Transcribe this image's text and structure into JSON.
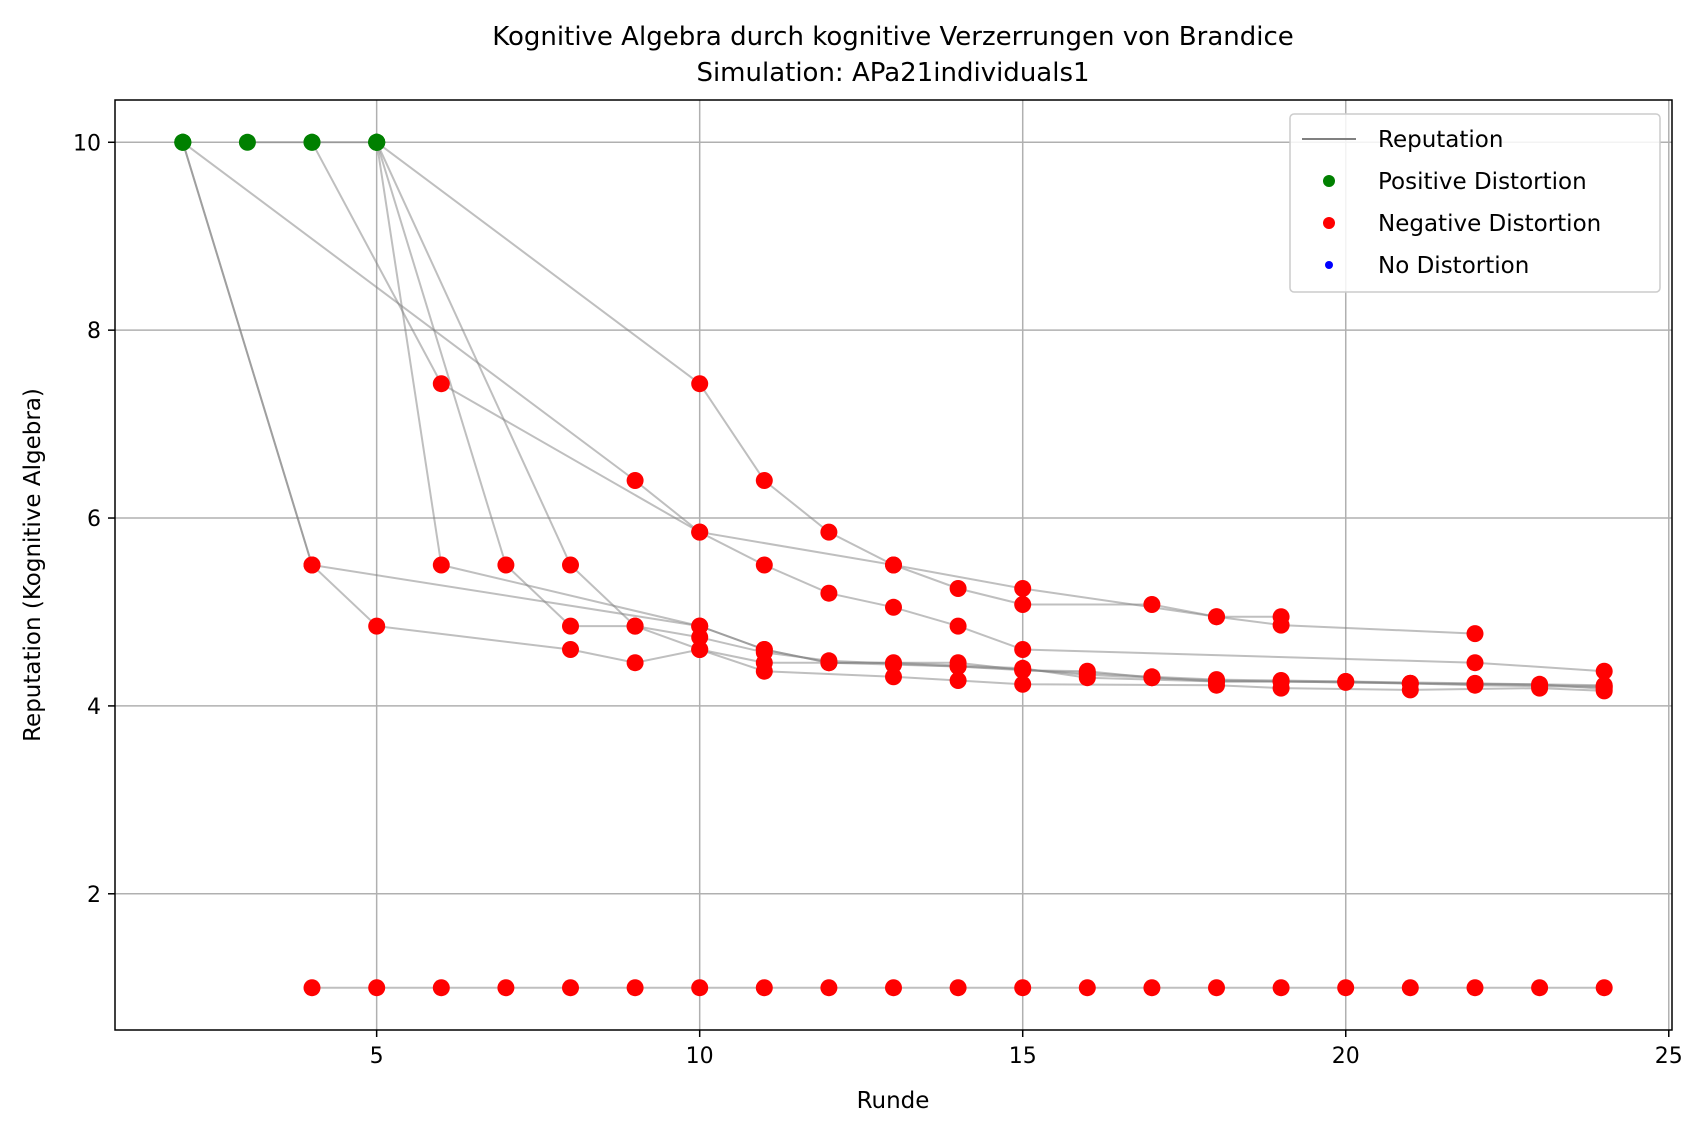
{
  "chart_data": {
    "type": "scatter",
    "title": "Kognitive Algebra durch kognitive Verzerrungen von Brandice",
    "subtitle": "Simulation: APa21individuals1",
    "xlabel": "Runde",
    "ylabel": "Reputation (Kognitive Algebra)",
    "xlim": [
      0.95,
      25.05
    ],
    "ylim": [
      0.55,
      10.45
    ],
    "xticks": [
      5,
      10,
      15,
      20,
      25
    ],
    "yticks": [
      2,
      4,
      6,
      8,
      10
    ],
    "xtick_labels": [
      "5",
      "10",
      "15",
      "20",
      "25"
    ],
    "ytick_labels": [
      "2",
      "4",
      "6",
      "8",
      "10"
    ],
    "grid": true,
    "legend_position": "top-right",
    "legend": [
      {
        "label": "Reputation",
        "kind": "line",
        "color": "#808080"
      },
      {
        "label": "Positive Distortion",
        "kind": "marker",
        "color": "#008000"
      },
      {
        "label": "Negative Distortion",
        "kind": "marker",
        "color": "#ff0000"
      },
      {
        "label": "No Distortion",
        "kind": "marker",
        "color": "#0000ff"
      }
    ],
    "colors": {
      "positive": "#008000",
      "negative": "#ff0000",
      "none": "#0000ff",
      "line": "#808080"
    },
    "series": [
      {
        "points": [
          [
            2,
            10
          ],
          [
            4,
            5.5
          ],
          [
            10,
            4.85
          ],
          [
            11,
            4.6
          ],
          [
            12,
            4.46
          ],
          [
            13,
            4.44
          ],
          [
            14,
            4.42
          ],
          [
            15,
            4.38
          ],
          [
            16,
            4.35
          ],
          [
            17,
            4.31
          ],
          [
            18,
            4.28
          ],
          [
            19,
            4.27
          ],
          [
            20,
            4.26
          ],
          [
            21,
            4.24
          ],
          [
            22,
            4.22
          ],
          [
            23,
            4.21
          ],
          [
            24,
            4.2
          ]
        ]
      },
      {
        "points": [
          [
            2,
            10
          ],
          [
            4,
            5.5
          ],
          [
            5,
            4.85
          ],
          [
            8,
            4.6
          ],
          [
            9,
            4.46
          ],
          [
            10,
            4.6
          ],
          [
            11,
            4.37
          ],
          [
            13,
            4.31
          ],
          [
            14,
            4.27
          ],
          [
            15,
            4.23
          ],
          [
            18,
            4.22
          ],
          [
            19,
            4.19
          ],
          [
            21,
            4.17
          ],
          [
            23,
            4.19
          ],
          [
            24,
            4.16
          ]
        ]
      },
      {
        "points": [
          [
            2,
            10
          ],
          [
            9,
            6.4
          ],
          [
            10,
            5.85
          ],
          [
            11,
            5.5
          ],
          [
            12,
            5.2
          ],
          [
            13,
            5.05
          ],
          [
            14,
            4.85
          ],
          [
            15,
            4.6
          ],
          [
            22,
            4.46
          ],
          [
            24,
            4.37
          ]
        ]
      },
      {
        "points": [
          [
            3,
            10
          ],
          [
            4,
            10
          ],
          [
            5,
            10
          ],
          [
            10,
            7.43
          ],
          [
            11,
            6.4
          ],
          [
            12,
            5.85
          ],
          [
            13,
            5.5
          ],
          [
            14,
            5.25
          ],
          [
            15,
            5.08
          ],
          [
            17,
            5.08
          ],
          [
            18,
            4.95
          ],
          [
            19,
            4.86
          ],
          [
            22,
            4.77
          ]
        ]
      },
      {
        "points": [
          [
            4,
            10
          ],
          [
            6,
            7.43
          ],
          [
            10,
            5.85
          ],
          [
            13,
            5.5
          ],
          [
            15,
            5.25
          ],
          [
            18,
            4.95
          ],
          [
            19,
            4.95
          ]
        ]
      },
      {
        "points": [
          [
            5,
            10
          ],
          [
            6,
            5.5
          ],
          [
            10,
            4.85
          ],
          [
            11,
            4.6
          ],
          [
            12,
            4.46
          ],
          [
            14,
            4.46
          ],
          [
            15,
            4.38
          ],
          [
            16,
            4.37
          ],
          [
            17,
            4.3
          ],
          [
            18,
            4.26
          ],
          [
            20,
            4.26
          ],
          [
            22,
            4.24
          ],
          [
            24,
            4.22
          ]
        ]
      },
      {
        "points": [
          [
            5,
            10
          ],
          [
            7,
            5.5
          ],
          [
            8,
            4.85
          ],
          [
            9,
            4.85
          ],
          [
            10,
            4.6
          ],
          [
            11,
            4.46
          ],
          [
            13,
            4.46
          ],
          [
            15,
            4.4
          ],
          [
            16,
            4.3
          ],
          [
            18,
            4.26
          ],
          [
            19,
            4.26
          ],
          [
            21,
            4.24
          ],
          [
            23,
            4.23
          ],
          [
            24,
            4.18
          ]
        ]
      },
      {
        "points": [
          [
            5,
            10
          ],
          [
            8,
            5.5
          ],
          [
            9,
            4.85
          ],
          [
            10,
            4.73
          ],
          [
            11,
            4.57
          ],
          [
            12,
            4.48
          ],
          [
            13,
            4.45
          ],
          [
            14,
            4.42
          ],
          [
            15,
            4.39
          ],
          [
            16,
            4.33
          ],
          [
            17,
            4.3
          ],
          [
            18,
            4.27
          ],
          [
            19,
            4.26
          ],
          [
            20,
            4.25
          ],
          [
            21,
            4.24
          ],
          [
            22,
            4.23
          ],
          [
            23,
            4.22
          ],
          [
            24,
            4.21
          ]
        ]
      },
      {
        "points": [
          [
            4,
            1
          ],
          [
            5,
            1
          ],
          [
            6,
            1
          ],
          [
            7,
            1
          ],
          [
            8,
            1
          ],
          [
            9,
            1
          ],
          [
            10,
            1
          ],
          [
            11,
            1
          ],
          [
            12,
            1
          ],
          [
            13,
            1
          ],
          [
            14,
            1
          ],
          [
            15,
            1
          ],
          [
            16,
            1
          ],
          [
            17,
            1
          ],
          [
            18,
            1
          ],
          [
            19,
            1
          ],
          [
            20,
            1
          ],
          [
            21,
            1
          ],
          [
            22,
            1
          ],
          [
            23,
            1
          ],
          [
            24,
            1
          ]
        ]
      }
    ]
  }
}
